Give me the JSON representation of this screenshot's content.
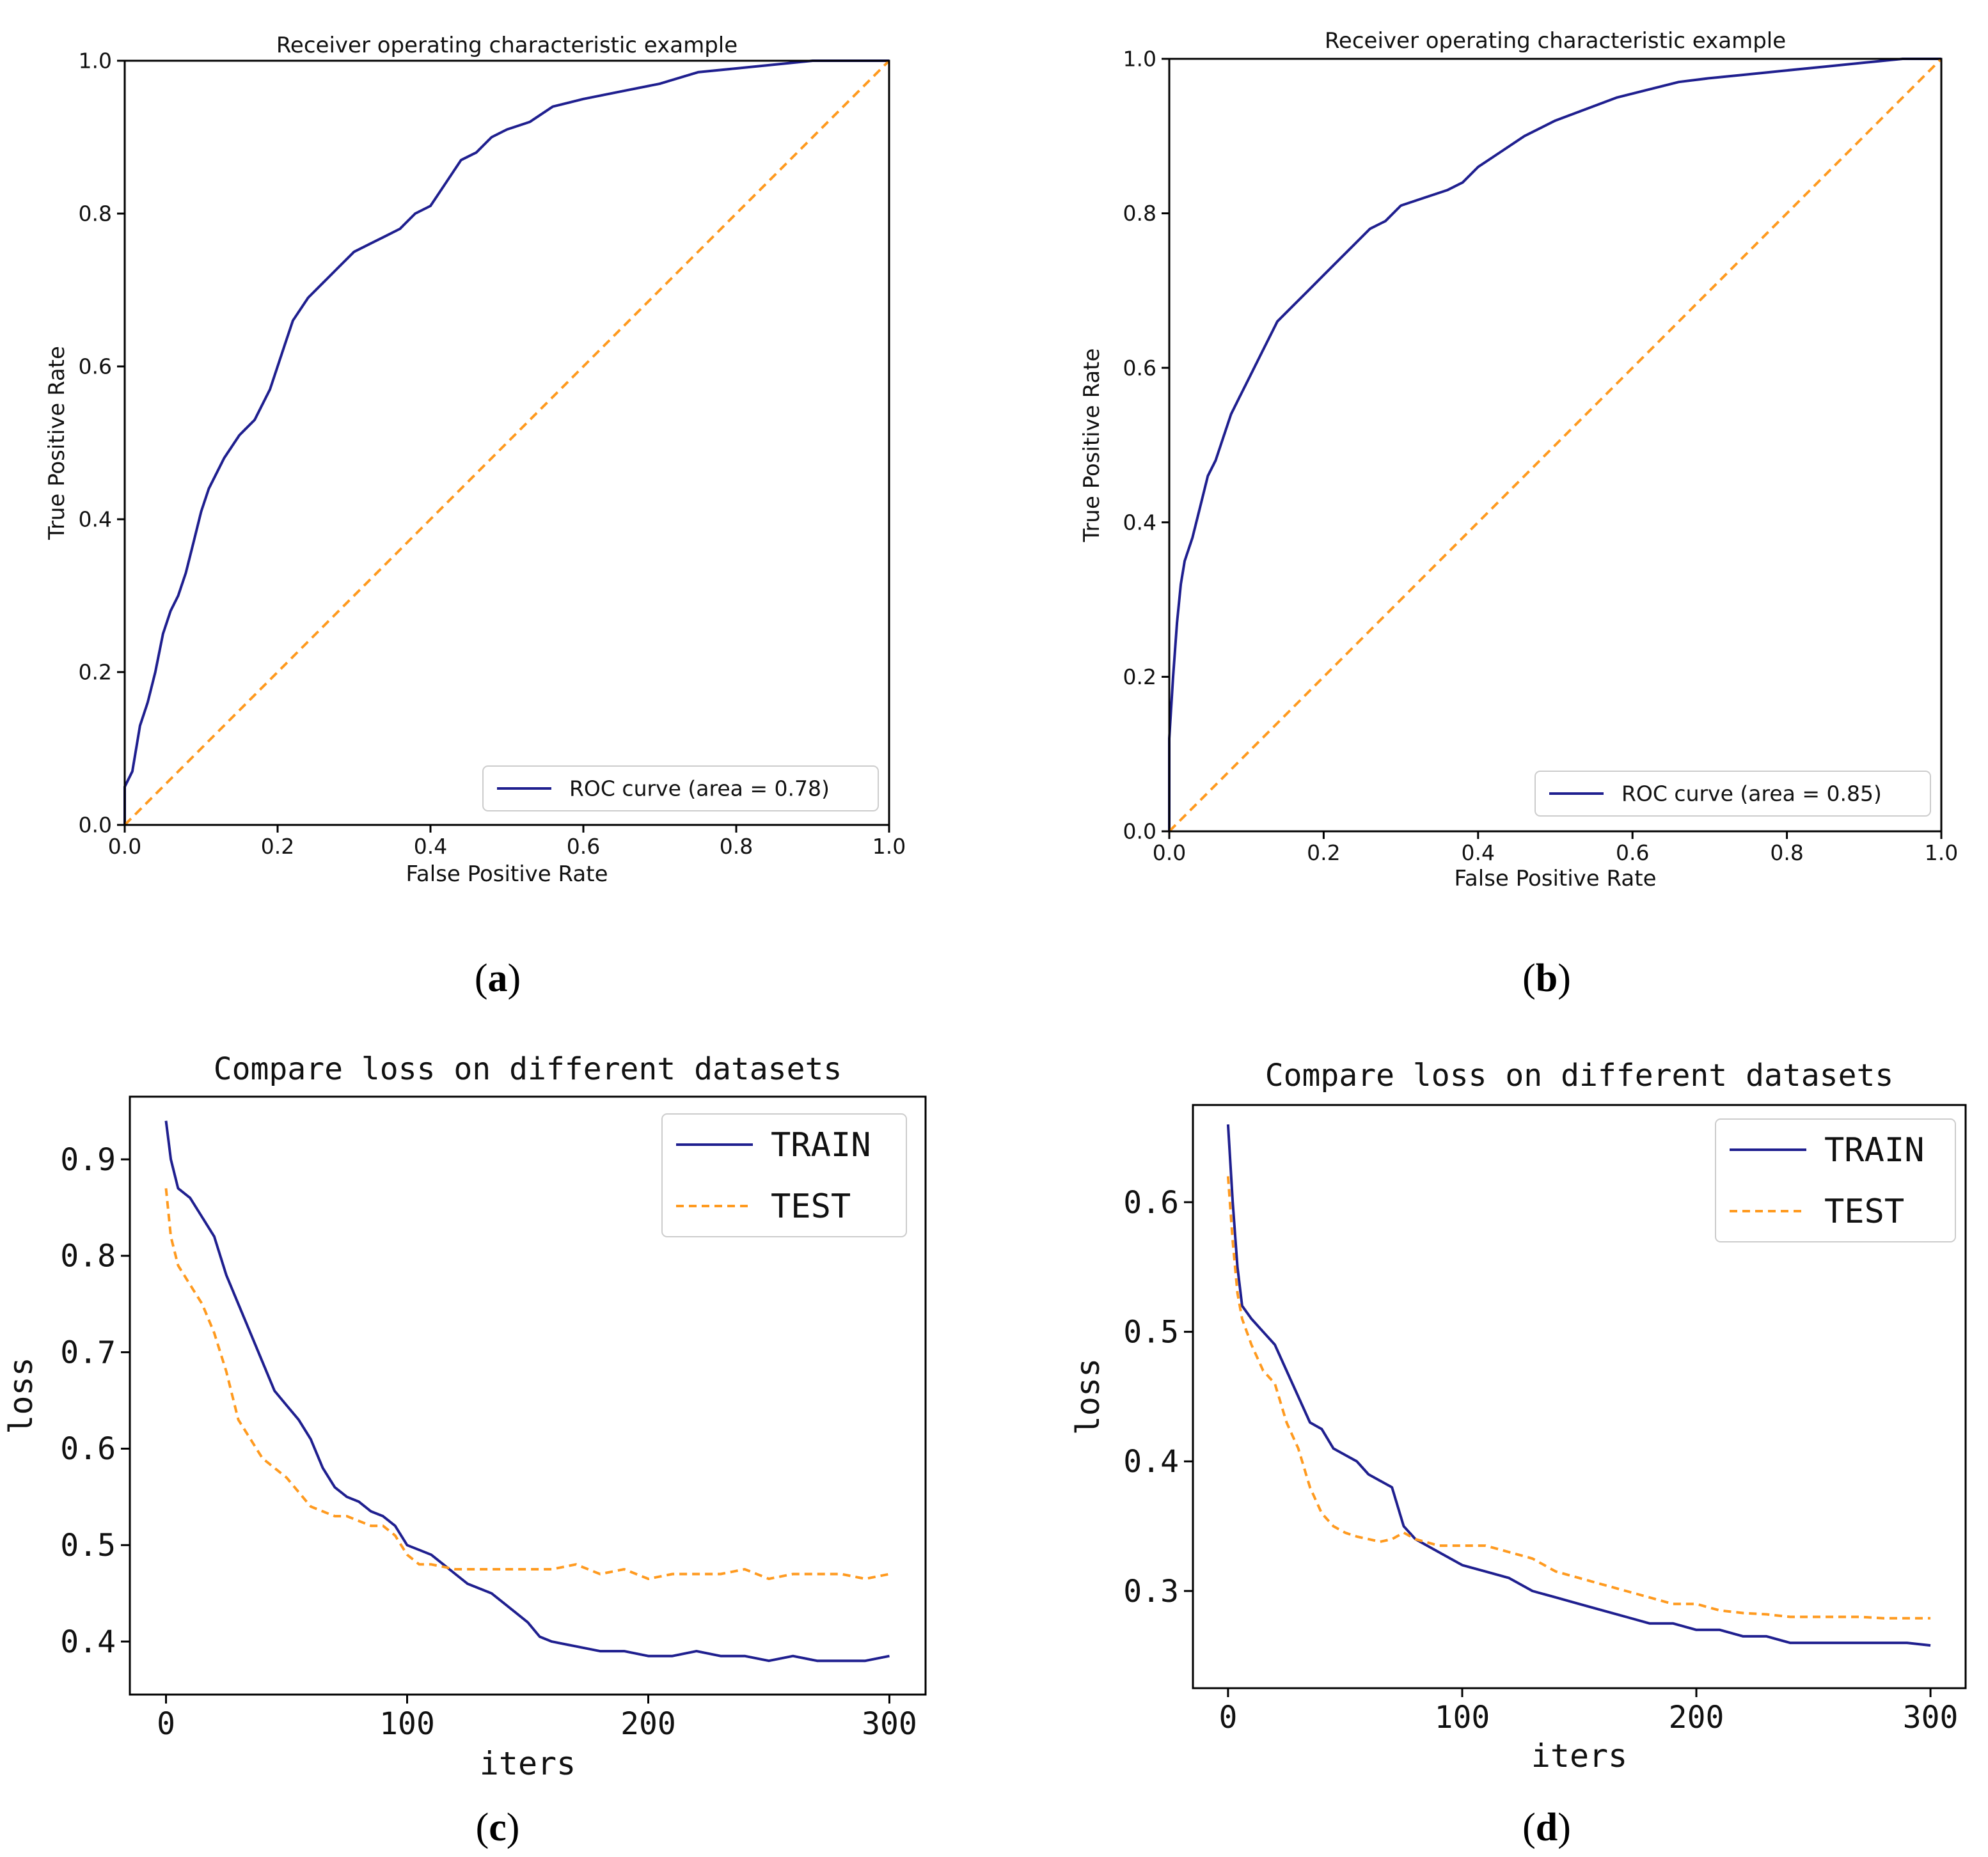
{
  "panel_labels": [
    "a",
    "b",
    "c",
    "d"
  ],
  "colors": {
    "train": "#1f1f8f",
    "test": "#ff9a1f",
    "axis": "#000000",
    "legend_border": "#cccccc"
  },
  "chart_data": [
    {
      "type": "line",
      "title": "Receiver operating characteristic example",
      "xlabel": "False Positive Rate",
      "ylabel": "True Positive Rate",
      "xlim": [
        0,
        1
      ],
      "ylim": [
        0,
        1
      ],
      "xticks": [
        "0.0",
        "0.2",
        "0.4",
        "0.6",
        "0.8",
        "1.0"
      ],
      "yticks": [
        "0.0",
        "0.2",
        "0.4",
        "0.6",
        "0.8",
        "1.0"
      ],
      "grid": false,
      "legend_position": "lower-right",
      "series": [
        {
          "name": "ROC curve (area = 0.78)",
          "style": "solid",
          "x": [
            0.0,
            0.0,
            0.01,
            0.02,
            0.03,
            0.04,
            0.05,
            0.06,
            0.07,
            0.08,
            0.09,
            0.1,
            0.11,
            0.12,
            0.13,
            0.15,
            0.17,
            0.19,
            0.21,
            0.22,
            0.24,
            0.26,
            0.28,
            0.3,
            0.32,
            0.34,
            0.36,
            0.38,
            0.4,
            0.42,
            0.44,
            0.46,
            0.48,
            0.5,
            0.53,
            0.56,
            0.6,
            0.65,
            0.7,
            0.75,
            0.8,
            0.85,
            0.9,
            0.95,
            1.0
          ],
          "y": [
            0.0,
            0.05,
            0.07,
            0.13,
            0.16,
            0.2,
            0.25,
            0.28,
            0.3,
            0.33,
            0.37,
            0.41,
            0.44,
            0.46,
            0.48,
            0.51,
            0.53,
            0.57,
            0.63,
            0.66,
            0.69,
            0.71,
            0.73,
            0.75,
            0.76,
            0.77,
            0.78,
            0.8,
            0.81,
            0.84,
            0.87,
            0.88,
            0.9,
            0.91,
            0.92,
            0.94,
            0.95,
            0.96,
            0.97,
            0.985,
            0.99,
            0.995,
            1.0,
            1.0,
            1.0
          ]
        },
        {
          "name": "",
          "style": "dashed",
          "x": [
            0,
            1
          ],
          "y": [
            0,
            1
          ]
        }
      ]
    },
    {
      "type": "line",
      "title": "Receiver operating characteristic example",
      "xlabel": "False Positive Rate",
      "ylabel": "True Positive Rate",
      "xlim": [
        0,
        1
      ],
      "ylim": [
        0,
        1
      ],
      "xticks": [
        "0.0",
        "0.2",
        "0.4",
        "0.6",
        "0.8",
        "1.0"
      ],
      "yticks": [
        "0.0",
        "0.2",
        "0.4",
        "0.6",
        "0.8",
        "1.0"
      ],
      "grid": false,
      "legend_position": "lower-right",
      "series": [
        {
          "name": "ROC curve (area = 0.85)",
          "style": "solid",
          "x": [
            0.0,
            0.0,
            0.005,
            0.01,
            0.015,
            0.02,
            0.03,
            0.04,
            0.05,
            0.06,
            0.07,
            0.08,
            0.09,
            0.1,
            0.12,
            0.14,
            0.16,
            0.18,
            0.2,
            0.22,
            0.24,
            0.26,
            0.28,
            0.3,
            0.33,
            0.36,
            0.38,
            0.4,
            0.43,
            0.46,
            0.5,
            0.54,
            0.58,
            0.62,
            0.66,
            0.7,
            0.75,
            0.8,
            0.85,
            0.9,
            0.95,
            1.0
          ],
          "y": [
            0.0,
            0.12,
            0.2,
            0.27,
            0.32,
            0.35,
            0.38,
            0.42,
            0.46,
            0.48,
            0.51,
            0.54,
            0.56,
            0.58,
            0.62,
            0.66,
            0.68,
            0.7,
            0.72,
            0.74,
            0.76,
            0.78,
            0.79,
            0.81,
            0.82,
            0.83,
            0.84,
            0.86,
            0.88,
            0.9,
            0.92,
            0.935,
            0.95,
            0.96,
            0.97,
            0.975,
            0.98,
            0.985,
            0.99,
            0.995,
            1.0,
            1.0
          ]
        },
        {
          "name": "",
          "style": "dashed",
          "x": [
            0,
            1
          ],
          "y": [
            0,
            1
          ]
        }
      ]
    },
    {
      "type": "line",
      "title": "Compare loss on different datasets",
      "xlabel": "iters",
      "ylabel": "loss",
      "xlim": [
        -15,
        315
      ],
      "ylim": [
        0.345,
        0.965
      ],
      "xticks": [
        0,
        100,
        200,
        300
      ],
      "yticks": [
        0.4,
        0.5,
        0.6,
        0.7,
        0.8,
        0.9
      ],
      "grid": false,
      "legend_position": "upper-right",
      "series": [
        {
          "name": "TRAIN",
          "style": "solid",
          "x": [
            0,
            2,
            5,
            10,
            15,
            20,
            25,
            30,
            35,
            40,
            45,
            50,
            55,
            60,
            65,
            70,
            75,
            80,
            85,
            90,
            95,
            100,
            105,
            110,
            115,
            120,
            125,
            130,
            135,
            140,
            145,
            150,
            155,
            160,
            170,
            180,
            190,
            200,
            210,
            220,
            230,
            240,
            250,
            260,
            270,
            280,
            290,
            300
          ],
          "y": [
            0.94,
            0.9,
            0.87,
            0.86,
            0.84,
            0.82,
            0.78,
            0.75,
            0.72,
            0.69,
            0.66,
            0.645,
            0.63,
            0.61,
            0.58,
            0.56,
            0.55,
            0.545,
            0.535,
            0.53,
            0.52,
            0.5,
            0.495,
            0.49,
            0.48,
            0.47,
            0.46,
            0.455,
            0.45,
            0.44,
            0.43,
            0.42,
            0.405,
            0.4,
            0.395,
            0.39,
            0.39,
            0.385,
            0.385,
            0.39,
            0.385,
            0.385,
            0.38,
            0.385,
            0.38,
            0.38,
            0.38,
            0.385
          ]
        },
        {
          "name": "TEST",
          "style": "dashed",
          "x": [
            0,
            2,
            5,
            10,
            15,
            20,
            25,
            30,
            35,
            40,
            45,
            50,
            55,
            60,
            65,
            70,
            75,
            80,
            85,
            90,
            95,
            100,
            105,
            110,
            120,
            130,
            140,
            150,
            160,
            170,
            180,
            190,
            200,
            210,
            220,
            230,
            240,
            250,
            260,
            270,
            280,
            290,
            300
          ],
          "y": [
            0.87,
            0.82,
            0.79,
            0.77,
            0.75,
            0.72,
            0.68,
            0.63,
            0.61,
            0.59,
            0.58,
            0.57,
            0.555,
            0.54,
            0.535,
            0.53,
            0.53,
            0.525,
            0.52,
            0.52,
            0.51,
            0.49,
            0.48,
            0.48,
            0.475,
            0.475,
            0.475,
            0.475,
            0.475,
            0.48,
            0.47,
            0.475,
            0.465,
            0.47,
            0.47,
            0.47,
            0.475,
            0.465,
            0.47,
            0.47,
            0.47,
            0.465,
            0.47
          ]
        }
      ]
    },
    {
      "type": "line",
      "title": "Compare loss on different datasets",
      "xlabel": "iters",
      "ylabel": "loss",
      "xlim": [
        -15,
        315
      ],
      "ylim": [
        0.225,
        0.675
      ],
      "xticks": [
        0,
        100,
        200,
        300
      ],
      "yticks": [
        0.3,
        0.4,
        0.5,
        0.6
      ],
      "grid": false,
      "legend_position": "upper-right",
      "series": [
        {
          "name": "TRAIN",
          "style": "solid",
          "x": [
            0,
            2,
            4,
            6,
            10,
            15,
            20,
            25,
            30,
            35,
            40,
            45,
            50,
            55,
            60,
            65,
            70,
            75,
            80,
            90,
            100,
            110,
            120,
            130,
            140,
            150,
            160,
            170,
            180,
            190,
            200,
            210,
            220,
            230,
            240,
            250,
            260,
            270,
            280,
            290,
            300
          ],
          "y": [
            0.66,
            0.6,
            0.55,
            0.52,
            0.51,
            0.5,
            0.49,
            0.47,
            0.45,
            0.43,
            0.425,
            0.41,
            0.405,
            0.4,
            0.39,
            0.385,
            0.38,
            0.35,
            0.34,
            0.33,
            0.32,
            0.315,
            0.31,
            0.3,
            0.295,
            0.29,
            0.285,
            0.28,
            0.275,
            0.275,
            0.27,
            0.27,
            0.265,
            0.265,
            0.26,
            0.26,
            0.26,
            0.26,
            0.26,
            0.26,
            0.258
          ]
        },
        {
          "name": "TEST",
          "style": "dashed",
          "x": [
            0,
            2,
            4,
            6,
            10,
            15,
            20,
            25,
            30,
            35,
            40,
            45,
            50,
            55,
            60,
            65,
            70,
            75,
            80,
            90,
            100,
            110,
            120,
            130,
            140,
            150,
            160,
            170,
            180,
            190,
            200,
            210,
            220,
            230,
            240,
            250,
            260,
            270,
            280,
            290,
            300
          ],
          "y": [
            0.62,
            0.57,
            0.53,
            0.51,
            0.49,
            0.47,
            0.46,
            0.43,
            0.41,
            0.38,
            0.36,
            0.35,
            0.345,
            0.342,
            0.34,
            0.338,
            0.34,
            0.345,
            0.34,
            0.335,
            0.335,
            0.335,
            0.33,
            0.325,
            0.315,
            0.31,
            0.305,
            0.3,
            0.295,
            0.29,
            0.29,
            0.285,
            0.283,
            0.282,
            0.28,
            0.28,
            0.28,
            0.28,
            0.279,
            0.279,
            0.279
          ]
        }
      ]
    }
  ]
}
